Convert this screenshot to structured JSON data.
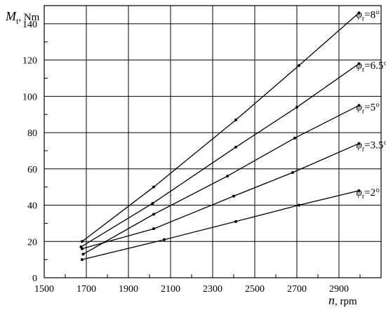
{
  "chart_data": {
    "type": "line",
    "xlabel_symbol": "n",
    "xlabel_unit": ", rpm",
    "ylabel_symbol": "M",
    "ylabel_subscript": "t",
    "ylabel_unit": ", Nm",
    "xlim": [
      1500,
      3100
    ],
    "ylim": [
      0,
      150
    ],
    "xticks": [
      1500,
      1700,
      1900,
      2100,
      2300,
      2500,
      2700,
      2900
    ],
    "yticks": [
      0,
      20,
      40,
      60,
      80,
      100,
      120,
      140
    ],
    "grid": true,
    "series": [
      {
        "name": "φr=8°",
        "symbol": "φ",
        "sub": "r",
        "value": "=8°",
        "color": "#000000",
        "x": [
          1680,
          2020,
          2410,
          2710,
          2995
        ],
        "y": [
          20,
          50,
          87,
          117,
          146
        ]
      },
      {
        "name": "φr=6.5°",
        "symbol": "φ",
        "sub": "r",
        "value": "=6.5°",
        "color": "#000000",
        "x": [
          1675,
          2015,
          2410,
          2700,
          2995
        ],
        "y": [
          17,
          41,
          72,
          94,
          118
        ]
      },
      {
        "name": "φr=5°",
        "symbol": "φ",
        "sub": "r",
        "value": "=5°",
        "color": "#000000",
        "x": [
          1685,
          2020,
          2370,
          2690,
          2995
        ],
        "y": [
          13,
          35,
          56,
          77,
          95
        ]
      },
      {
        "name": "φr=3.5°",
        "symbol": "φ",
        "sub": "r",
        "value": "=3.5°",
        "color": "#000000",
        "x": [
          1680,
          2020,
          2400,
          2680,
          2995
        ],
        "y": [
          16,
          27,
          45,
          58,
          74
        ]
      },
      {
        "name": "φr=2°",
        "symbol": "φ",
        "sub": "r",
        "value": "=2°",
        "color": "#000000",
        "x": [
          1680,
          2070,
          2410,
          2710,
          2995
        ],
        "y": [
          10,
          21,
          31,
          40,
          48
        ]
      }
    ]
  }
}
